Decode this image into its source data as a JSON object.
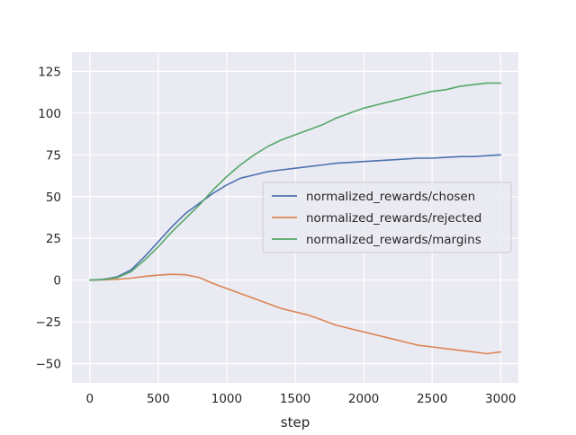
{
  "chart_data": {
    "type": "line",
    "title": "",
    "xlabel": "step",
    "ylabel": "",
    "xlim": [
      -130,
      3130
    ],
    "ylim": [
      -61.5,
      136.5
    ],
    "xticks": [
      0,
      500,
      1000,
      1500,
      2000,
      2500,
      3000
    ],
    "yticks": [
      -50,
      -25,
      0,
      25,
      50,
      75,
      100,
      125
    ],
    "grid": true,
    "legend_position": "center-right",
    "series": [
      {
        "name": "normalized_rewards/chosen",
        "color": "#4c72b0",
        "x": [
          0,
          100,
          200,
          300,
          400,
          500,
          600,
          700,
          800,
          900,
          1000,
          1100,
          1200,
          1300,
          1400,
          1500,
          1600,
          1700,
          1800,
          1900,
          2000,
          2100,
          2200,
          2300,
          2400,
          2500,
          2600,
          2700,
          2800,
          2900,
          3000
        ],
        "values": [
          0,
          0.5,
          2,
          6,
          14,
          23,
          32,
          40,
          46,
          52,
          57,
          61,
          63,
          65,
          66,
          67,
          68,
          69,
          70,
          70.5,
          71,
          71.5,
          72,
          72.5,
          73,
          73,
          73.5,
          74,
          74,
          74.5,
          75
        ]
      },
      {
        "name": "normalized_rewards/rejected",
        "color": "#dd8452",
        "x": [
          0,
          100,
          200,
          300,
          400,
          500,
          600,
          700,
          800,
          900,
          1000,
          1100,
          1200,
          1300,
          1400,
          1500,
          1600,
          1700,
          1800,
          1900,
          2000,
          2100,
          2200,
          2300,
          2400,
          2500,
          2600,
          2700,
          2800,
          2900,
          3000
        ],
        "values": [
          0,
          0.2,
          0.5,
          1.2,
          2.2,
          3,
          3.5,
          3.2,
          1.5,
          -2,
          -5,
          -8,
          -11,
          -14,
          -17,
          -19,
          -21,
          -24,
          -27,
          -29,
          -31,
          -33,
          -35,
          -37,
          -39,
          -40,
          -41,
          -42,
          -43,
          -44,
          -43
        ]
      },
      {
        "name": "normalized_rewards/margins",
        "color": "#55a868",
        "x": [
          0,
          100,
          200,
          300,
          400,
          500,
          600,
          700,
          800,
          900,
          1000,
          1100,
          1200,
          1300,
          1400,
          1500,
          1600,
          1700,
          1800,
          1900,
          2000,
          2100,
          2200,
          2300,
          2400,
          2500,
          2600,
          2700,
          2800,
          2900,
          3000
        ],
        "values": [
          0,
          0.3,
          1.5,
          5,
          12,
          20,
          29,
          37,
          45,
          54,
          62,
          69,
          75,
          80,
          84,
          87,
          90,
          93,
          97,
          100,
          103,
          105,
          107,
          109,
          111,
          113,
          114,
          116,
          117,
          118,
          118
        ]
      }
    ]
  }
}
